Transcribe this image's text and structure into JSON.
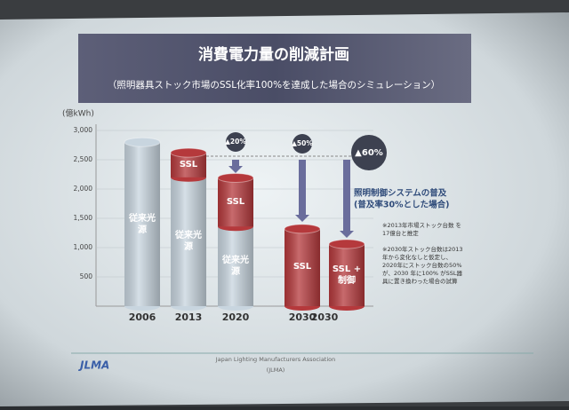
{
  "chart_data": {
    "type": "stacked_cylinder",
    "title": "消費電力量の削減計画",
    "subtitle": "（照明器具ストック市場のSSL化率100%を達成した場合のシミュレーション）",
    "y_label": "(億kWh)",
    "categories": [
      "2006",
      "2013",
      "2020",
      "2030",
      null
    ],
    "group_label": "2030",
    "series": [
      {
        "name": "従来光源",
        "color": "#c8d5df",
        "values": [
          2800,
          2200,
          1360,
          null,
          null
        ]
      },
      {
        "name": "SSL",
        "color": "#b5393c",
        "values": [
          null,
          420,
          830,
          1320,
          null
        ]
      },
      {
        "name": "SSL + 制御",
        "color": "#b5393c",
        "values": [
          null,
          null,
          null,
          null,
          1060
        ]
      }
    ],
    "ylim": [
      0,
      3000
    ],
    "yticks": [
      500,
      {
        "value": 1000,
        "label": "1,000"
      },
      {
        "value": 1500,
        "label": "1,500"
      },
      {
        "value": 2000,
        "label": "2,000"
      },
      {
        "value": 2500,
        "label": "2,500"
      },
      {
        "value": 3000,
        "label": "3,000"
      }
    ],
    "grid": true,
    "reductions": [
      "▲20%",
      "▲50%",
      "▲60%"
    ],
    "control_note": [
      "照明制御システムの普及",
      "(普及率30%とした場合)"
    ],
    "notes": [
      "※2013年市場ストック台数 を17億台と推定",
      "※2030年ストック台数は2013年から変化なしと仮定し、2020年にストック台数の50%が、2030 年に100% がSSL器具に置き換わった場合の試算"
    ],
    "footer": [
      "Japan Lighting Manufacturers Association",
      "(JLMA)"
    ],
    "logo": "JLMA"
  }
}
